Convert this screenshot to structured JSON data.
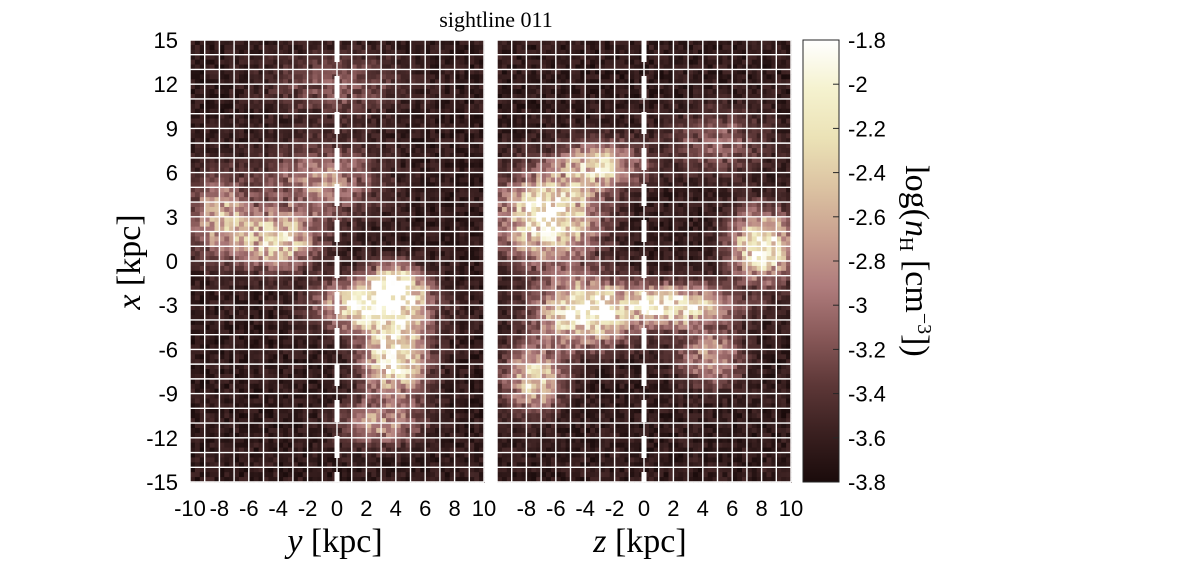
{
  "title": "sightline 011",
  "colors": {
    "grid": "#ffffff",
    "sightline": "#ffffff",
    "cmap": [
      "#1a0b0b",
      "#3a2020",
      "#5e3838",
      "#8a5a5a",
      "#b07d7d",
      "#c9a08f",
      "#dcc3a2",
      "#ebe2b6",
      "#f5f2cf",
      "#ffffff"
    ]
  },
  "chart_data": [
    {
      "type": "heatmap",
      "panel": "left",
      "xlabel_var": "y",
      "xlabel_unit": "[kpc]",
      "ylabel_var": "x",
      "ylabel_unit": "[kpc]",
      "xlim": [
        -10,
        10
      ],
      "ylim": [
        -15,
        15
      ],
      "xticks": [
        "-10",
        "-8",
        "-6",
        "-4",
        "-2",
        "0",
        "2",
        "4",
        "6",
        "8",
        "10"
      ],
      "yticks": [
        "15",
        "12",
        "9",
        "6",
        "3",
        "0",
        "-3",
        "-6",
        "-9",
        "-12",
        "-15"
      ],
      "sightline_x": 0,
      "grid": true,
      "blobs": [
        {
          "x": 2.5,
          "y": -3.0,
          "sx": 3.2,
          "sy": 1.6,
          "a": 1.0
        },
        {
          "x": 4.0,
          "y": -6.5,
          "sx": 2.0,
          "sy": 2.5,
          "a": 0.95
        },
        {
          "x": -4.0,
          "y": 1.5,
          "sx": 2.5,
          "sy": 1.8,
          "a": 0.8
        },
        {
          "x": 4.0,
          "y": -1.5,
          "sx": 1.8,
          "sy": 1.2,
          "a": 0.8
        },
        {
          "x": -1.0,
          "y": 5.5,
          "sx": 3.5,
          "sy": 2.2,
          "a": 0.45
        },
        {
          "x": -8.0,
          "y": 3.0,
          "sx": 2.0,
          "sy": 2.5,
          "a": 0.55
        },
        {
          "x": 3.0,
          "y": -11.0,
          "sx": 2.5,
          "sy": 1.5,
          "a": 0.45
        },
        {
          "x": 0.0,
          "y": 12.0,
          "sx": 4.0,
          "sy": 2.0,
          "a": 0.25
        }
      ]
    },
    {
      "type": "heatmap",
      "panel": "right",
      "xlabel_var": "z",
      "xlabel_unit": "[kpc]",
      "xlim": [
        -10,
        10
      ],
      "ylim": [
        -15,
        15
      ],
      "xticks": [
        "-8",
        "-6",
        "-4",
        "-2",
        "0",
        "2",
        "4",
        "6",
        "8",
        "10"
      ],
      "sightline_x": 0,
      "grid": true,
      "blobs": [
        {
          "x": -6.5,
          "y": 3.0,
          "sx": 3.0,
          "sy": 2.8,
          "a": 1.0
        },
        {
          "x": -4.0,
          "y": -3.5,
          "sx": 3.0,
          "sy": 2.0,
          "a": 1.0
        },
        {
          "x": 2.0,
          "y": -3.0,
          "sx": 3.5,
          "sy": 1.3,
          "a": 0.9
        },
        {
          "x": 8.0,
          "y": 1.0,
          "sx": 2.0,
          "sy": 2.2,
          "a": 0.95
        },
        {
          "x": -7.5,
          "y": -8.0,
          "sx": 1.8,
          "sy": 2.0,
          "a": 0.75
        },
        {
          "x": -3.0,
          "y": 6.5,
          "sx": 2.5,
          "sy": 1.5,
          "a": 0.7
        },
        {
          "x": 4.5,
          "y": -6.5,
          "sx": 2.0,
          "sy": 1.8,
          "a": 0.5
        },
        {
          "x": 5.0,
          "y": 8.0,
          "sx": 3.0,
          "sy": 2.0,
          "a": 0.3
        }
      ]
    }
  ],
  "colorbar": {
    "ticks": [
      "-1.8",
      "-2",
      "-2.2",
      "-2.4",
      "-2.6",
      "-2.8",
      "-3",
      "-3.2",
      "-3.4",
      "-3.6",
      "-3.8"
    ],
    "range": [
      -3.8,
      -1.8
    ],
    "label": "log(n_H [cm^-3])",
    "label_parts": [
      "log(",
      "n",
      "H",
      " [cm",
      "−3",
      "])"
    ]
  }
}
